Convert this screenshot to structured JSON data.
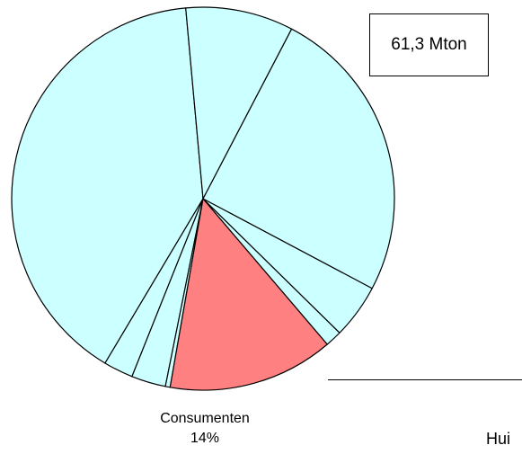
{
  "total_label": "61,3 Mton",
  "highlight": {
    "name": "Consumenten",
    "percent_label": "14%"
  },
  "partial_text": "Hui",
  "colors": {
    "default_slice": "#ccffff",
    "highlight_slice": "#ff8080",
    "outline": "#000000"
  },
  "chart_data": {
    "type": "pie",
    "title": "",
    "start_angle_deg": 264.8,
    "direction": "counterclockwise",
    "slices": [
      {
        "label": "",
        "value": 40.0,
        "highlight": false
      },
      {
        "label": "",
        "value": 2.5,
        "highlight": false
      },
      {
        "label": "",
        "value": 2.9,
        "highlight": false
      },
      {
        "label": "",
        "value": 0.4,
        "highlight": false
      },
      {
        "label": "Consumenten",
        "value": 14.0,
        "highlight": true
      },
      {
        "label": "",
        "value": 1.4,
        "highlight": false
      },
      {
        "label": "",
        "value": 4.6,
        "highlight": false
      },
      {
        "label": "",
        "value": 25.1,
        "highlight": false
      },
      {
        "label": "",
        "value": 9.1,
        "highlight": false
      }
    ]
  }
}
